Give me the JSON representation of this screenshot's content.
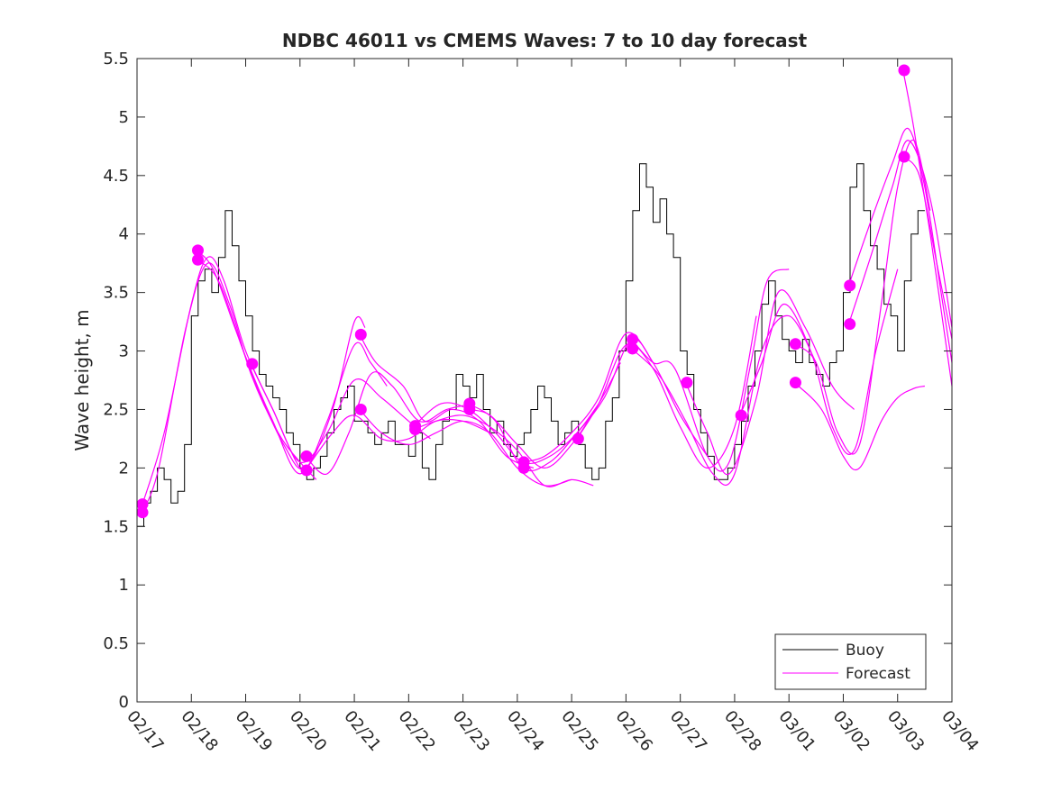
{
  "chart_data": {
    "type": "line",
    "title": "NDBC 46011 vs CMEMS Waves: 7 to 10 day forecast",
    "xlabel": "",
    "ylabel": "Wave height, m",
    "xlim": [
      0,
      15
    ],
    "ylim": [
      0,
      5.5
    ],
    "x_units": "days since 02/17",
    "x_tick_labels": [
      "02/17",
      "02/18",
      "02/19",
      "02/20",
      "02/21",
      "02/22",
      "02/23",
      "02/24",
      "02/25",
      "02/26",
      "02/27",
      "02/28",
      "03/01",
      "03/02",
      "03/03",
      "03/04"
    ],
    "y_ticks": [
      0,
      0.5,
      1,
      1.5,
      2,
      2.5,
      3,
      3.5,
      4,
      4.5,
      5,
      5.5
    ],
    "y_tick_labels": [
      "0",
      "0.5",
      "1",
      "1.5",
      "2",
      "2.5",
      "3",
      "3.5",
      "4",
      "4.5",
      "5",
      "5.5"
    ],
    "grid": false,
    "legend": {
      "placement": "bottom-right",
      "entries": [
        "Buoy",
        "Forecast"
      ]
    },
    "colors": {
      "buoy": "#000000",
      "forecast": "#ff00ff"
    },
    "buoy": {
      "name": "Buoy",
      "x_start": 0,
      "x_step": 0.125,
      "values": [
        1.5,
        1.7,
        1.8,
        2.0,
        1.9,
        1.7,
        1.8,
        2.2,
        3.3,
        3.6,
        3.7,
        3.5,
        3.8,
        4.2,
        3.9,
        3.6,
        3.3,
        3.0,
        2.8,
        2.7,
        2.6,
        2.5,
        2.3,
        2.2,
        2.0,
        1.9,
        2.0,
        2.1,
        2.3,
        2.5,
        2.6,
        2.7,
        2.4,
        2.4,
        2.3,
        2.2,
        2.3,
        2.4,
        2.2,
        2.2,
        2.1,
        2.3,
        2.0,
        1.9,
        2.2,
        2.4,
        2.5,
        2.8,
        2.7,
        2.6,
        2.8,
        2.5,
        2.3,
        2.4,
        2.2,
        2.1,
        2.2,
        2.3,
        2.5,
        2.7,
        2.6,
        2.4,
        2.2,
        2.3,
        2.4,
        2.2,
        2.0,
        1.9,
        2.0,
        2.4,
        2.6,
        3.0,
        3.6,
        4.2,
        4.6,
        4.4,
        4.1,
        4.3,
        4.0,
        3.8,
        3.0,
        2.8,
        2.5,
        2.3,
        2.1,
        1.9,
        1.9,
        2.0,
        2.2,
        2.4,
        2.7,
        3.0,
        3.4,
        3.6,
        3.3,
        3.1,
        3.0,
        2.9,
        3.1,
        2.9,
        2.8,
        2.7,
        2.9,
        3.0,
        3.5,
        4.4,
        4.6,
        4.2,
        3.9,
        3.7,
        3.4,
        3.3,
        3.0,
        3.6,
        4.0,
        4.2
      ]
    },
    "forecast_series": [
      {
        "name": "Forecast",
        "points": [
          [
            0.1,
            1.69
          ],
          [
            0.5,
            2.3
          ],
          [
            1.0,
            3.4
          ],
          [
            1.3,
            3.8
          ],
          [
            1.6,
            3.6
          ],
          [
            2.0,
            3.0
          ],
          [
            2.5,
            2.5
          ],
          [
            3.0,
            2.0
          ],
          [
            3.3,
            2.0
          ]
        ]
      },
      {
        "name": "Forecast",
        "points": [
          [
            0.1,
            1.62
          ],
          [
            0.4,
            2.0
          ],
          [
            0.9,
            3.2
          ],
          [
            1.3,
            3.75
          ],
          [
            1.7,
            3.4
          ],
          [
            2.1,
            2.8
          ],
          [
            2.6,
            2.3
          ],
          [
            3.0,
            2.05
          ],
          [
            3.3,
            1.9
          ]
        ]
      },
      {
        "name": "Forecast",
        "points": [
          [
            1.1,
            3.86
          ],
          [
            1.4,
            3.7
          ],
          [
            1.8,
            3.2
          ],
          [
            2.2,
            2.7
          ],
          [
            2.7,
            2.2
          ],
          [
            3.1,
            2.0
          ],
          [
            3.6,
            2.5
          ],
          [
            4.0,
            3.25
          ],
          [
            4.2,
            3.2
          ]
        ]
      },
      {
        "name": "Forecast",
        "points": [
          [
            1.1,
            3.78
          ],
          [
            1.5,
            3.6
          ],
          [
            2.0,
            2.95
          ],
          [
            2.5,
            2.4
          ],
          [
            3.0,
            1.95
          ],
          [
            3.5,
            2.4
          ],
          [
            4.0,
            3.05
          ],
          [
            4.3,
            2.9
          ],
          [
            4.6,
            2.7
          ]
        ]
      },
      {
        "name": "Forecast",
        "points": [
          [
            2.1,
            2.89
          ],
          [
            2.5,
            2.5
          ],
          [
            3.0,
            2.05
          ],
          [
            3.5,
            2.3
          ],
          [
            4.0,
            2.75
          ],
          [
            4.5,
            2.6
          ],
          [
            5.0,
            2.4
          ],
          [
            5.4,
            2.25
          ]
        ]
      },
      {
        "name": "Forecast",
        "points": [
          [
            3.1,
            2.1
          ],
          [
            3.5,
            1.95
          ],
          [
            3.9,
            2.3
          ],
          [
            4.3,
            2.8
          ],
          [
            4.7,
            2.7
          ],
          [
            5.2,
            2.4
          ],
          [
            5.7,
            2.5
          ],
          [
            6.2,
            2.55
          ]
        ]
      },
      {
        "name": "Forecast",
        "points": [
          [
            3.1,
            1.98
          ],
          [
            3.6,
            2.3
          ],
          [
            4.0,
            2.45
          ],
          [
            4.5,
            2.25
          ],
          [
            5.0,
            2.25
          ],
          [
            5.5,
            2.4
          ],
          [
            6.0,
            2.4
          ],
          [
            6.5,
            2.3
          ]
        ]
      },
      {
        "name": "Forecast",
        "points": [
          [
            4.1,
            3.14
          ],
          [
            4.4,
            2.9
          ],
          [
            4.9,
            2.7
          ],
          [
            5.3,
            2.4
          ],
          [
            5.8,
            2.5
          ],
          [
            6.3,
            2.4
          ],
          [
            6.8,
            2.1
          ],
          [
            7.3,
            2.0
          ]
        ]
      },
      {
        "name": "Forecast",
        "points": [
          [
            4.1,
            2.5
          ],
          [
            4.5,
            2.3
          ],
          [
            5.0,
            2.2
          ],
          [
            5.5,
            2.3
          ],
          [
            6.0,
            2.4
          ],
          [
            6.5,
            2.3
          ],
          [
            7.0,
            2.0
          ],
          [
            7.5,
            1.85
          ],
          [
            8.0,
            1.9
          ]
        ]
      },
      {
        "name": "Forecast",
        "points": [
          [
            5.1,
            2.36
          ],
          [
            5.6,
            2.55
          ],
          [
            6.1,
            2.5
          ],
          [
            6.6,
            2.3
          ],
          [
            7.1,
            2.05
          ],
          [
            7.6,
            2.1
          ],
          [
            8.1,
            2.3
          ],
          [
            8.5,
            2.55
          ]
        ]
      },
      {
        "name": "Forecast",
        "points": [
          [
            5.1,
            2.33
          ],
          [
            5.5,
            2.4
          ],
          [
            6.0,
            2.45
          ],
          [
            6.5,
            2.35
          ],
          [
            7.0,
            2.15
          ],
          [
            7.5,
            1.85
          ],
          [
            8.0,
            1.9
          ],
          [
            8.4,
            1.85
          ]
        ]
      },
      {
        "name": "Forecast",
        "points": [
          [
            6.1,
            2.55
          ],
          [
            6.6,
            2.4
          ],
          [
            7.1,
            2.0
          ],
          [
            7.6,
            2.05
          ],
          [
            8.1,
            2.3
          ],
          [
            8.6,
            2.6
          ],
          [
            9.1,
            3.1
          ],
          [
            9.5,
            2.9
          ]
        ]
      },
      {
        "name": "Forecast",
        "points": [
          [
            6.1,
            2.5
          ],
          [
            6.5,
            2.45
          ],
          [
            7.0,
            2.2
          ],
          [
            7.5,
            2.0
          ],
          [
            8.0,
            2.2
          ],
          [
            8.5,
            2.55
          ],
          [
            8.9,
            2.9
          ]
        ]
      },
      {
        "name": "Forecast",
        "points": [
          [
            7.1,
            2.05
          ],
          [
            7.5,
            2.1
          ],
          [
            8.0,
            2.3
          ],
          [
            8.5,
            2.6
          ],
          [
            9.0,
            3.15
          ],
          [
            9.5,
            2.9
          ],
          [
            10.0,
            2.45
          ],
          [
            10.5,
            2.1
          ]
        ]
      },
      {
        "name": "Forecast",
        "points": [
          [
            8.1,
            2.25
          ],
          [
            8.5,
            2.55
          ],
          [
            9.0,
            3.05
          ],
          [
            9.5,
            2.85
          ],
          [
            10.0,
            2.35
          ],
          [
            10.5,
            2.0
          ],
          [
            11.0,
            2.35
          ],
          [
            11.4,
            3.3
          ]
        ]
      },
      {
        "name": "Forecast",
        "points": [
          [
            9.1,
            3.1
          ],
          [
            9.5,
            2.9
          ],
          [
            9.9,
            2.85
          ],
          [
            10.5,
            2.1
          ],
          [
            10.9,
            2.05
          ],
          [
            11.3,
            2.9
          ],
          [
            11.6,
            3.6
          ],
          [
            12.0,
            3.7
          ]
        ]
      },
      {
        "name": "Forecast",
        "points": [
          [
            9.1,
            3.02
          ],
          [
            9.6,
            2.8
          ],
          [
            10.1,
            2.4
          ],
          [
            10.6,
            1.95
          ],
          [
            11.0,
            1.95
          ],
          [
            11.5,
            3.0
          ],
          [
            12.0,
            3.3
          ],
          [
            12.5,
            2.9
          ]
        ]
      },
      {
        "name": "Forecast",
        "points": [
          [
            10.1,
            2.73
          ],
          [
            10.5,
            2.3
          ],
          [
            10.9,
            1.95
          ],
          [
            11.4,
            2.6
          ],
          [
            11.8,
            3.5
          ],
          [
            12.3,
            3.2
          ],
          [
            12.8,
            2.7
          ],
          [
            13.2,
            2.5
          ]
        ]
      },
      {
        "name": "Forecast",
        "points": [
          [
            11.1,
            2.45
          ],
          [
            11.5,
            2.9
          ],
          [
            11.9,
            3.4
          ],
          [
            12.4,
            3.0
          ],
          [
            12.8,
            2.35
          ],
          [
            13.2,
            2.15
          ],
          [
            13.6,
            3.0
          ],
          [
            14.0,
            3.7
          ]
        ]
      },
      {
        "name": "Forecast",
        "points": [
          [
            12.1,
            3.06
          ],
          [
            12.5,
            2.9
          ],
          [
            12.9,
            2.3
          ],
          [
            13.3,
            2.2
          ],
          [
            13.7,
            3.4
          ],
          [
            14.0,
            4.4
          ],
          [
            14.3,
            4.8
          ],
          [
            14.6,
            4.2
          ]
        ]
      },
      {
        "name": "Forecast",
        "points": [
          [
            12.1,
            2.73
          ],
          [
            12.6,
            2.5
          ],
          [
            13.0,
            2.1
          ],
          [
            13.3,
            2.0
          ],
          [
            13.7,
            2.4
          ],
          [
            14.0,
            2.6
          ],
          [
            14.3,
            2.68
          ],
          [
            14.5,
            2.7
          ]
        ]
      },
      {
        "name": "Forecast",
        "points": [
          [
            13.1,
            3.56
          ],
          [
            13.5,
            4.1
          ],
          [
            13.9,
            4.6
          ],
          [
            14.2,
            4.9
          ],
          [
            14.5,
            4.4
          ],
          [
            14.8,
            3.5
          ],
          [
            15.0,
            2.9
          ]
        ]
      },
      {
        "name": "Forecast",
        "points": [
          [
            13.1,
            3.23
          ],
          [
            13.5,
            3.8
          ],
          [
            13.9,
            4.4
          ],
          [
            14.2,
            4.8
          ],
          [
            14.6,
            4.3
          ],
          [
            15.0,
            3.2
          ]
        ]
      },
      {
        "name": "Forecast",
        "points": [
          [
            14.1,
            5.4
          ],
          [
            14.3,
            4.9
          ],
          [
            14.6,
            4.0
          ],
          [
            15.0,
            2.7
          ]
        ]
      },
      {
        "name": "Forecast",
        "points": [
          [
            14.1,
            4.66
          ],
          [
            14.4,
            4.5
          ],
          [
            14.7,
            3.8
          ],
          [
            15.0,
            3.1
          ]
        ]
      }
    ],
    "forecast_markers": [
      [
        0.1,
        1.69
      ],
      [
        0.1,
        1.62
      ],
      [
        1.12,
        3.86
      ],
      [
        1.12,
        3.78
      ],
      [
        2.12,
        2.89
      ],
      [
        3.12,
        2.1
      ],
      [
        3.12,
        1.98
      ],
      [
        4.12,
        3.14
      ],
      [
        4.12,
        2.5
      ],
      [
        5.12,
        2.36
      ],
      [
        5.12,
        2.33
      ],
      [
        6.12,
        2.55
      ],
      [
        6.12,
        2.5
      ],
      [
        7.12,
        2.05
      ],
      [
        7.12,
        2.0
      ],
      [
        8.12,
        2.25
      ],
      [
        9.12,
        3.1
      ],
      [
        9.12,
        3.02
      ],
      [
        10.12,
        2.73
      ],
      [
        11.12,
        2.45
      ],
      [
        12.12,
        3.06
      ],
      [
        12.12,
        2.73
      ],
      [
        13.12,
        3.56
      ],
      [
        13.12,
        3.23
      ],
      [
        14.12,
        5.4
      ],
      [
        14.12,
        4.66
      ]
    ]
  }
}
